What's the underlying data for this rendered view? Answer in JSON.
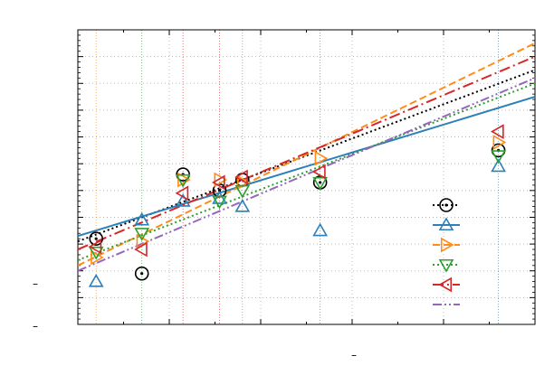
{
  "chart_data": {
    "type": "scatter",
    "title": "",
    "xlabel": "",
    "ylabel": "",
    "axes_text": {
      "y_tick_marks_left": [
        "–",
        "–"
      ],
      "x_label_fragment": "–"
    },
    "grid": true,
    "legend_placement": "right-middle",
    "xlim": [
      0,
      100
    ],
    "ylim": [
      -10,
      100
    ],
    "x": [
      4,
      14,
      23,
      31,
      36,
      53,
      92
    ],
    "series": [
      {
        "marker": "circle",
        "color": "#000000",
        "line_style": "dotted",
        "values": [
          22,
          9,
          46,
          40,
          44,
          43,
          55
        ],
        "fit": [
          [
            0,
            21
          ],
          [
            100,
            85
          ]
        ]
      },
      {
        "marker": "triangle-up",
        "color": "#2c7fb8",
        "line_style": "solid",
        "values": [
          6,
          29,
          36,
          37,
          34,
          25,
          49
        ],
        "fit": [
          [
            0,
            23
          ],
          [
            100,
            75
          ]
        ]
      },
      {
        "marker": "triangle-right",
        "color": "#ff8c1a",
        "line_style": "dashed",
        "values": [
          15,
          21,
          44,
          44,
          43,
          52,
          58
        ],
        "fit": [
          [
            0,
            12
          ],
          [
            100,
            95
          ]
        ]
      },
      {
        "marker": "triangle-down",
        "color": "#2ca02c",
        "line_style": "dotted",
        "values": [
          17,
          24,
          44,
          36,
          40,
          43,
          53
        ],
        "fit": [
          [
            0,
            14
          ],
          [
            100,
            80
          ]
        ]
      },
      {
        "marker": "triangle-left",
        "color": "#d62728",
        "line_style": "dash-dot",
        "values": [
          19,
          18,
          39,
          43,
          45,
          47,
          62
        ],
        "fit": [
          [
            0,
            18
          ],
          [
            100,
            90
          ]
        ]
      },
      {
        "marker": "none",
        "color": "#9467bd",
        "line_style": "dash-dot-dot",
        "values": [],
        "fit": [
          [
            0,
            10
          ],
          [
            100,
            82
          ]
        ]
      }
    ],
    "colors": {
      "black": "#000000",
      "blue": "#2c7fb8",
      "orange": "#ff8c1a",
      "green": "#2ca02c",
      "red": "#d62728",
      "purple": "#9467bd",
      "grid": "#aaaaaa"
    }
  }
}
